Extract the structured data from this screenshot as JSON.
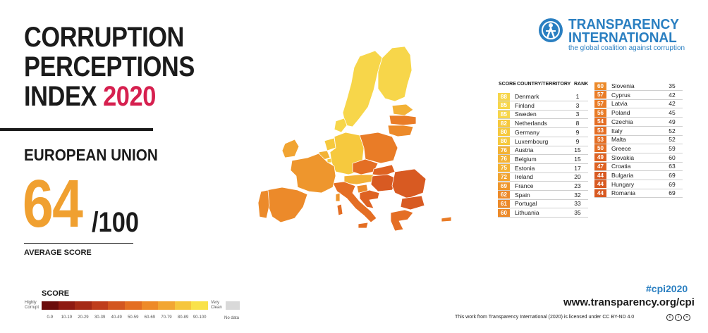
{
  "title": {
    "line1": "CORRUPTION",
    "line2": "PERCEPTIONS",
    "line3_prefix": "INDEX ",
    "year": "2020"
  },
  "region": "EUROPEAN UNION",
  "average": {
    "score": "64",
    "out_of": "/100",
    "label": "AVERAGE SCORE"
  },
  "logo": {
    "line1": "TRANSPARENCY",
    "line2": "INTERNATIONAL",
    "tagline": "the global coalition against corruption",
    "brand_color": "#2a7fc1",
    "icon": "globe-person-icon"
  },
  "legend": {
    "title": "SCORE",
    "low_label_1": "Highly",
    "low_label_2": "Corrupt",
    "high_label_1": "Very",
    "high_label_2": "Clean",
    "no_data": "No data",
    "ranges": [
      "0-9",
      "10-19",
      "20-29",
      "30-39",
      "40-49",
      "50-59",
      "60-69",
      "70-79",
      "80-89",
      "90-100"
    ],
    "colors": [
      "#6b0c0c",
      "#8e1a12",
      "#a52a16",
      "#bf3d1c",
      "#d35620",
      "#e46e22",
      "#ee8a28",
      "#f2a632",
      "#f6c63c",
      "#f9e24a"
    ]
  },
  "table": {
    "headers": {
      "score": "SCORE",
      "country": "COUNTRY/TERRITORY",
      "rank": "RANK"
    },
    "left": [
      {
        "score": "88",
        "country": "Denmark",
        "rank": "1"
      },
      {
        "score": "85",
        "country": "Finland",
        "rank": "3"
      },
      {
        "score": "85",
        "country": "Sweden",
        "rank": "3"
      },
      {
        "score": "82",
        "country": "Netherlands",
        "rank": "8"
      },
      {
        "score": "80",
        "country": "Germany",
        "rank": "9"
      },
      {
        "score": "80",
        "country": "Luxembourg",
        "rank": "9"
      },
      {
        "score": "76",
        "country": "Austria",
        "rank": "15"
      },
      {
        "score": "76",
        "country": "Belgium",
        "rank": "15"
      },
      {
        "score": "75",
        "country": "Estonia",
        "rank": "17"
      },
      {
        "score": "72",
        "country": "Ireland",
        "rank": "20"
      },
      {
        "score": "69",
        "country": "France",
        "rank": "23"
      },
      {
        "score": "62",
        "country": "Spain",
        "rank": "32"
      },
      {
        "score": "61",
        "country": "Portugal",
        "rank": "33"
      },
      {
        "score": "60",
        "country": "Lithuania",
        "rank": "35"
      }
    ],
    "right": [
      {
        "score": "60",
        "country": "Slovenia",
        "rank": "35"
      },
      {
        "score": "57",
        "country": "Cyprus",
        "rank": "42"
      },
      {
        "score": "57",
        "country": "Latvia",
        "rank": "42"
      },
      {
        "score": "56",
        "country": "Poland",
        "rank": "45"
      },
      {
        "score": "54",
        "country": "Czechia",
        "rank": "49"
      },
      {
        "score": "53",
        "country": "Italy",
        "rank": "52"
      },
      {
        "score": "53",
        "country": "Malta",
        "rank": "52"
      },
      {
        "score": "50",
        "country": "Greece",
        "rank": "59"
      },
      {
        "score": "49",
        "country": "Slovakia",
        "rank": "60"
      },
      {
        "score": "47",
        "country": "Croatia",
        "rank": "63"
      },
      {
        "score": "44",
        "country": "Bulgaria",
        "rank": "69"
      },
      {
        "score": "44",
        "country": "Hungary",
        "rank": "69"
      },
      {
        "score": "44",
        "country": "Romania",
        "rank": "69"
      }
    ]
  },
  "map": {
    "scores": {
      "Finland": 85,
      "Sweden": 85,
      "Denmark": 88,
      "Estonia": 75,
      "Latvia": 57,
      "Lithuania": 60,
      "Ireland": 72,
      "Netherlands": 82,
      "Belgium": 76,
      "Luxembourg": 80,
      "Germany": 80,
      "Poland": 56,
      "Czechia": 54,
      "Slovakia": 49,
      "Austria": 76,
      "Hungary": 44,
      "Romania": 44,
      "Bulgaria": 44,
      "Greece": 50,
      "Slovenia": 60,
      "Croatia": 47,
      "Italy": 53,
      "France": 69,
      "Spain": 62,
      "Portugal": 61,
      "Cyprus": 57,
      "Malta": 53
    }
  },
  "footer": {
    "hashtag": "#cpi2020",
    "url": "www.transparency.org/cpi",
    "license": "This work from Transparency International (2020) is licensed under CC BY-ND 4.0"
  }
}
